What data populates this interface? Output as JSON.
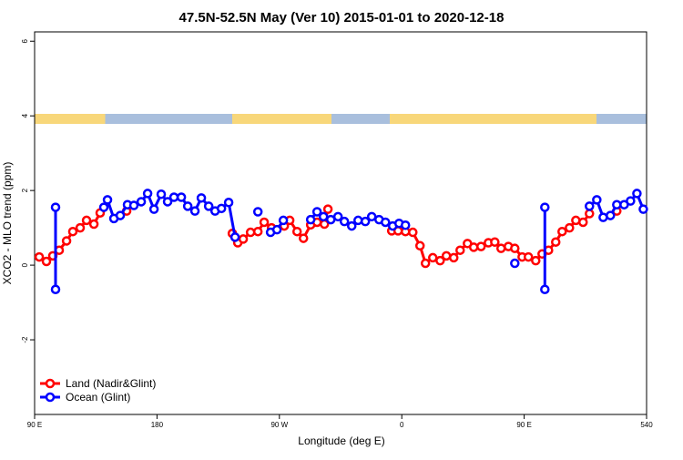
{
  "chart_data": {
    "type": "line",
    "title": "47.5N-52.5N May (Ver 10)   2015-01-01 to 2020-12-18",
    "x_label": "Longitude (deg E)",
    "y_label": "XCO2 - MLO trend (ppm)",
    "xlim": [
      90,
      540
    ],
    "xticks": [
      {
        "value": 90,
        "label": "90 E"
      },
      180,
      {
        "value": 270,
        "label": "90 W"
      },
      {
        "value": 360,
        "label": "0"
      },
      {
        "value": 450,
        "label": "90 E"
      },
      540
    ],
    "ylim": [
      -4,
      6.25
    ],
    "yticks": [
      -2,
      0,
      2,
      4,
      6
    ],
    "legend": "bottom-left",
    "series": [
      {
        "name": "Land (Nadir&Glint)",
        "color": "#ff0000",
        "x": [
          93.4,
          98.7,
          103.4,
          108.1,
          113.5,
          118.1,
          123.5,
          128.2,
          133.6,
          138.2,
          null,
          157.7,
          null,
          235.4,
          239.4,
          243.4,
          248.8,
          254.2,
          258.8,
          264.2,
          273.6,
          277.6,
          283,
          287.7,
          293,
          297.7,
          303.1,
          305.7,
          null,
          352.6,
          357.3,
          362.7,
          368.1,
          373.4,
          377.4,
          382.8,
          388.2,
          392.8,
          398.2,
          402.9,
          408.3,
          412.9,
          418.3,
          423.7,
          428.4,
          433,
          438.4,
          443.1,
          448.5,
          453.1,
          458.5,
          463.2,
          467.9,
          473.2,
          477.9,
          483.3,
          488,
          493.3,
          498,
          null,
          518.1
        ],
        "values": [
          0.22,
          0.1,
          0.25,
          0.4,
          0.65,
          0.9,
          1.0,
          1.2,
          1.1,
          1.4,
          null,
          1.45,
          null,
          0.85,
          0.6,
          0.7,
          0.88,
          0.9,
          1.15,
          1.0,
          1.05,
          1.2,
          0.9,
          0.72,
          1.08,
          1.15,
          1.1,
          1.5,
          null,
          0.92,
          0.92,
          0.9,
          0.88,
          0.52,
          0.05,
          0.2,
          0.12,
          0.25,
          0.2,
          0.4,
          0.58,
          0.48,
          0.5,
          0.6,
          0.62,
          0.45,
          0.5,
          0.45,
          0.22,
          0.22,
          0.12,
          0.3,
          0.4,
          0.62,
          0.9,
          1.0,
          1.2,
          1.15,
          1.38,
          null,
          1.45
        ]
      },
      {
        "name": "Ocean (Glint)",
        "color": "#0000ff",
        "x": [
          105.4,
          105.4,
          null,
          140.9,
          143.6,
          148.3,
          153,
          158.3,
          163,
          168.4,
          173.1,
          177.8,
          183.1,
          187.8,
          192.5,
          197.9,
          202.6,
          207.9,
          212.6,
          218,
          222.7,
          227.4,
          232.7,
          237.4,
          null,
          254.2,
          null,
          263.5,
          268.2,
          272.9,
          null,
          293,
          297.7,
          302.4,
          307.8,
          313.1,
          317.8,
          323.2,
          327.9,
          333.2,
          337.9,
          343.3,
          348,
          353.3,
          358,
          362.7,
          null,
          443.1,
          null,
          465.2,
          465.2,
          null,
          498,
          503.4,
          508.1,
          513.4,
          518.1,
          523.5,
          528.2,
          532.9,
          537.6
        ],
        "values": [
          1.55,
          -0.65,
          null,
          1.55,
          1.75,
          1.25,
          1.33,
          1.62,
          1.6,
          1.7,
          1.92,
          1.5,
          1.9,
          1.7,
          1.82,
          1.82,
          1.58,
          1.45,
          1.8,
          1.58,
          1.45,
          1.52,
          1.68,
          0.75,
          null,
          1.43,
          null,
          0.88,
          0.95,
          1.2,
          null,
          1.22,
          1.43,
          1.3,
          1.22,
          1.3,
          1.17,
          1.05,
          1.2,
          1.17,
          1.3,
          1.22,
          1.15,
          1.05,
          1.12,
          1.07,
          null,
          0.05,
          null,
          1.55,
          -0.65,
          null,
          1.58,
          1.75,
          1.28,
          1.33,
          1.62,
          1.62,
          1.72,
          1.92,
          1.5
        ]
      }
    ]
  }
}
